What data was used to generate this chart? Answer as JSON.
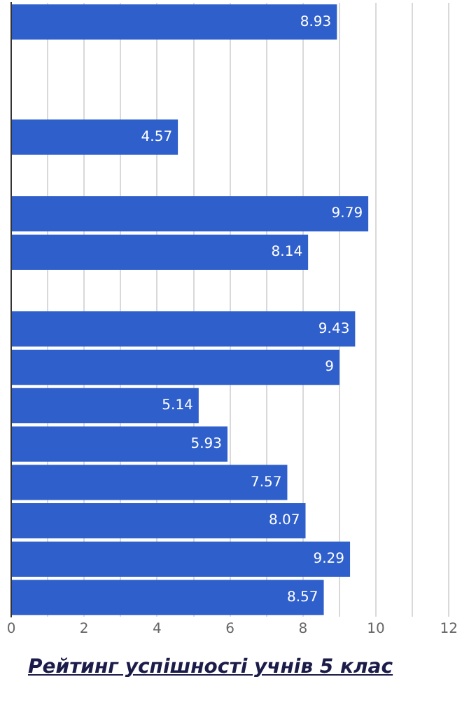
{
  "chart_data": {
    "type": "bar",
    "orientation": "horizontal",
    "title": "Рейтинг успішності учнів 5 клас",
    "categories": [
      null,
      null,
      null,
      null,
      null,
      null,
      null,
      null,
      null,
      null,
      null,
      null,
      null,
      null,
      null,
      null
    ],
    "values": [
      8.93,
      null,
      null,
      4.57,
      null,
      9.79,
      8.14,
      null,
      9.43,
      9,
      5.14,
      5.93,
      7.57,
      8.07,
      9.29,
      8.57
    ],
    "color": "#2f5fcb",
    "data_labels": true,
    "grid": "x",
    "xlim": [
      0,
      12
    ],
    "xticks": [
      0,
      {
        "value": 1,
        "label": null
      },
      2,
      {
        "value": 3,
        "label": null
      },
      4,
      {
        "value": 5,
        "label": null
      },
      6,
      {
        "value": 7,
        "label": null
      },
      8,
      {
        "value": 9,
        "label": null
      },
      10,
      {
        "value": 11,
        "label": null
      },
      12
    ]
  }
}
